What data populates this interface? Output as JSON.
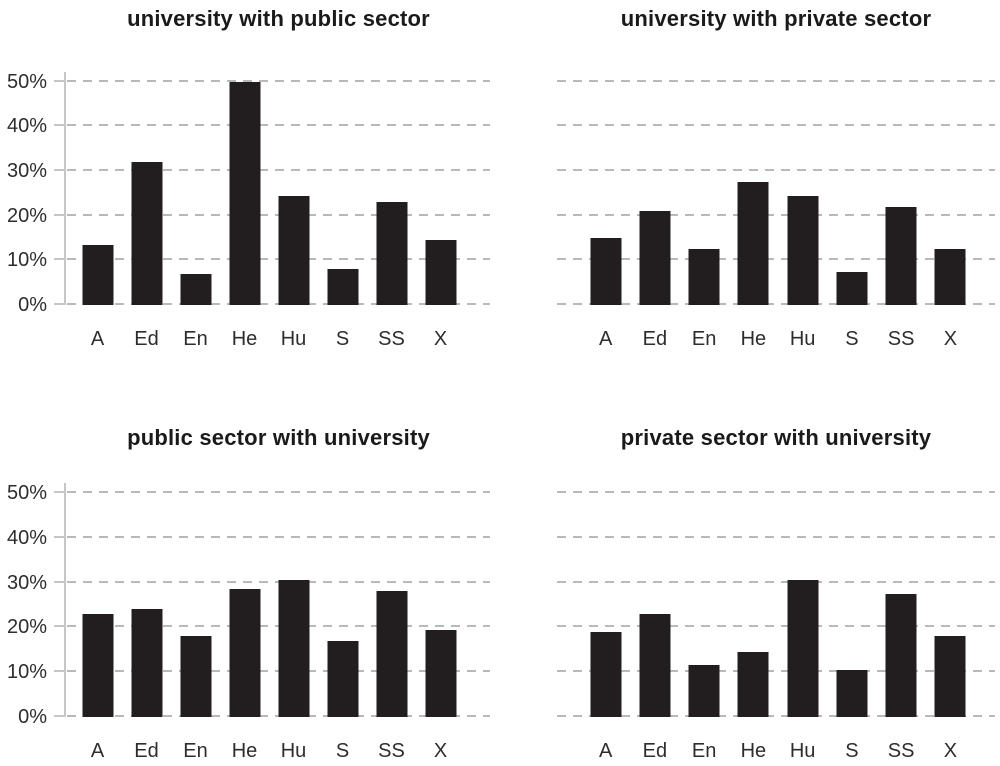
{
  "figure": {
    "background": "#ffffff",
    "layout": "2x2-grid",
    "ymax_drawn": 52.2,
    "colors": {
      "bar": "#221e1f",
      "gridline": "#b9b9b9",
      "axis": "#c6c6c6",
      "title_text": "#1a1a1a",
      "tick_text": "#2d2d2d"
    }
  },
  "chart_data": [
    {
      "type": "bar",
      "title": "university with public sector",
      "categories": [
        "A",
        "Ed",
        "En",
        "He",
        "Hu",
        "S",
        "SS",
        "X"
      ],
      "values": [
        13.5,
        32,
        7,
        50,
        24.5,
        8,
        23,
        14.5
      ],
      "unit": "%",
      "xlabel": "",
      "ylabel": "",
      "yticks": [
        0,
        10,
        20,
        30,
        40,
        50
      ],
      "ytick_labels": [
        "0%",
        "10%",
        "20%",
        "30%",
        "40%",
        "50%"
      ],
      "ylim": [
        0,
        52.2
      ],
      "y_axis_visible": true,
      "grid": "horizontal-dashed",
      "legend": "none"
    },
    {
      "type": "bar",
      "title": "university with private sector",
      "categories": [
        "A",
        "Ed",
        "En",
        "He",
        "Hu",
        "S",
        "SS",
        "X"
      ],
      "values": [
        15,
        21,
        12.5,
        27.5,
        24.5,
        7.5,
        22,
        12.5
      ],
      "unit": "%",
      "xlabel": "",
      "ylabel": "",
      "yticks": [
        0,
        10,
        20,
        30,
        40,
        50
      ],
      "ytick_labels": [
        "0%",
        "10%",
        "20%",
        "30%",
        "40%",
        "50%"
      ],
      "ylim": [
        0,
        52.2
      ],
      "y_axis_visible": false,
      "grid": "horizontal-dashed",
      "legend": "none"
    },
    {
      "type": "bar",
      "title": "public sector with university",
      "categories": [
        "A",
        "Ed",
        "En",
        "He",
        "Hu",
        "S",
        "SS",
        "X"
      ],
      "values": [
        23,
        24,
        18,
        28.5,
        30.5,
        17,
        28,
        19.5
      ],
      "unit": "%",
      "xlabel": "",
      "ylabel": "",
      "yticks": [
        0,
        10,
        20,
        30,
        40,
        50
      ],
      "ytick_labels": [
        "0%",
        "10%",
        "20%",
        "30%",
        "40%",
        "50%"
      ],
      "ylim": [
        0,
        52.2
      ],
      "y_axis_visible": true,
      "grid": "horizontal-dashed",
      "legend": "none"
    },
    {
      "type": "bar",
      "title": "private sector with university",
      "categories": [
        "A",
        "Ed",
        "En",
        "He",
        "Hu",
        "S",
        "SS",
        "X"
      ],
      "values": [
        19,
        23,
        11.5,
        14.5,
        30.5,
        10.5,
        27.5,
        18
      ],
      "unit": "%",
      "xlabel": "",
      "ylabel": "",
      "yticks": [
        0,
        10,
        20,
        30,
        40,
        50
      ],
      "ytick_labels": [
        "0%",
        "10%",
        "20%",
        "30%",
        "40%",
        "50%"
      ],
      "ylim": [
        0,
        52.2
      ],
      "y_axis_visible": false,
      "grid": "horizontal-dashed",
      "legend": "none"
    }
  ]
}
